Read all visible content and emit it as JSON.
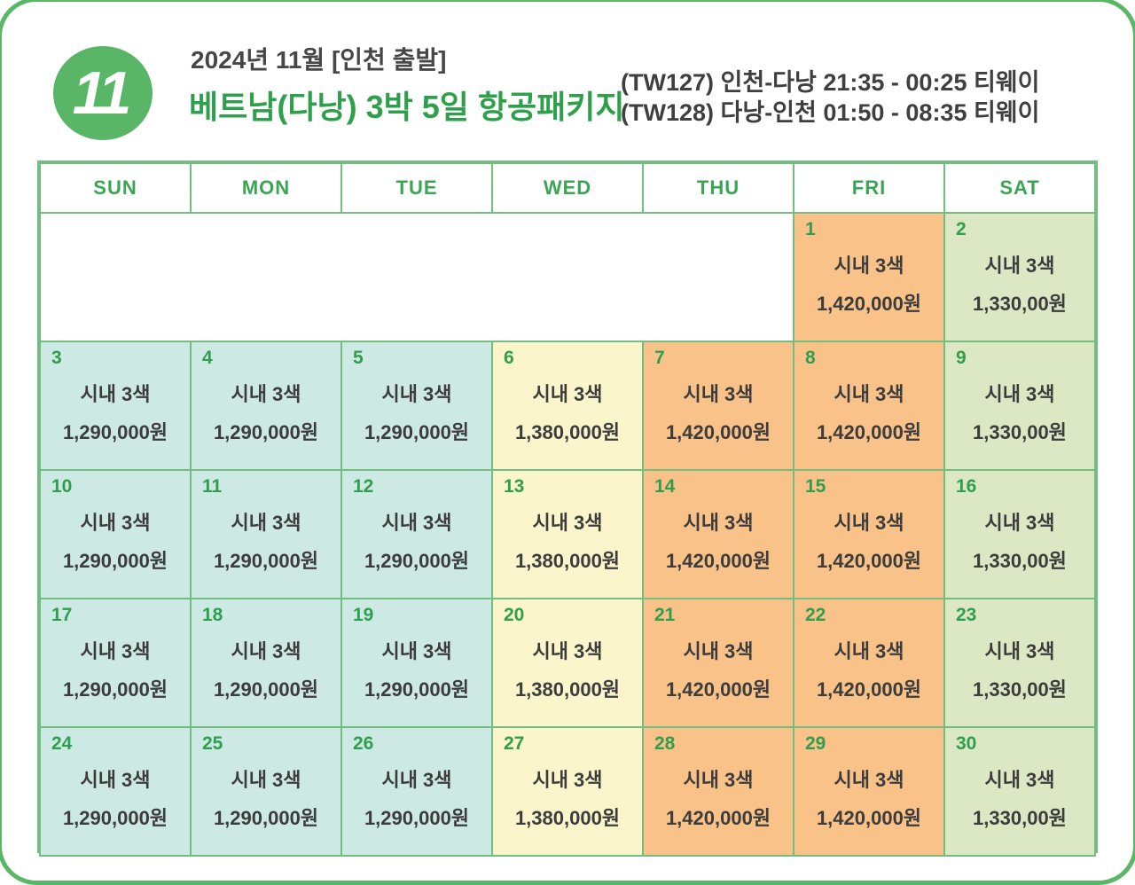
{
  "page": {
    "frame_color": "#5ab768",
    "accent_green": "#2ea04c",
    "border_green": "#74bd80"
  },
  "header": {
    "month_badge": "11",
    "date_line": "2024년 11월 [인천 출발]",
    "title": "베트남(다낭) 3박 5일 항공패키지",
    "flight_line1": "(TW127) 인천-다낭 21:35 - 00:25 티웨이",
    "flight_line2": "(TW128) 다낭-인천 01:50 - 08:35 티웨이"
  },
  "calendar": {
    "weekdays": [
      "SUN",
      "MON",
      "TUE",
      "WED",
      "THU",
      "FRI",
      "SAT"
    ],
    "product_label": "시내 3색",
    "column_variants": [
      "teal",
      "teal",
      "teal",
      "yellow",
      "orange",
      "orange",
      "green"
    ],
    "colors": {
      "teal": "#cde9e3",
      "yellow": "#fbf5cb",
      "orange": "#f8c289",
      "green": "#dce7c3",
      "white": "#ffffff"
    },
    "weeks": [
      [
        {
          "empty": true
        },
        {
          "empty": true
        },
        {
          "empty": true
        },
        {
          "empty": true
        },
        {
          "empty": true
        },
        {
          "day": "1",
          "price": "1,420,000원"
        },
        {
          "day": "2",
          "price": "1,330,00원"
        }
      ],
      [
        {
          "day": "3",
          "price": "1,290,000원"
        },
        {
          "day": "4",
          "price": "1,290,000원"
        },
        {
          "day": "5",
          "price": "1,290,000원"
        },
        {
          "day": "6",
          "price": "1,380,000원"
        },
        {
          "day": "7",
          "price": "1,420,000원"
        },
        {
          "day": "8",
          "price": "1,420,000원"
        },
        {
          "day": "9",
          "price": "1,330,00원"
        }
      ],
      [
        {
          "day": "10",
          "price": "1,290,000원"
        },
        {
          "day": "11",
          "price": "1,290,000원"
        },
        {
          "day": "12",
          "price": "1,290,000원"
        },
        {
          "day": "13",
          "price": "1,380,000원"
        },
        {
          "day": "14",
          "price": "1,420,000원"
        },
        {
          "day": "15",
          "price": "1,420,000원"
        },
        {
          "day": "16",
          "price": "1,330,00원"
        }
      ],
      [
        {
          "day": "17",
          "price": "1,290,000원"
        },
        {
          "day": "18",
          "price": "1,290,000원"
        },
        {
          "day": "19",
          "price": "1,290,000원"
        },
        {
          "day": "20",
          "price": "1,380,000원"
        },
        {
          "day": "21",
          "price": "1,420,000원"
        },
        {
          "day": "22",
          "price": "1,420,000원"
        },
        {
          "day": "23",
          "price": "1,330,00원"
        }
      ],
      [
        {
          "day": "24",
          "price": "1,290,000원"
        },
        {
          "day": "25",
          "price": "1,290,000원"
        },
        {
          "day": "26",
          "price": "1,290,000원"
        },
        {
          "day": "27",
          "price": "1,380,000원"
        },
        {
          "day": "28",
          "price": "1,420,000원"
        },
        {
          "day": "29",
          "price": "1,420,000원"
        },
        {
          "day": "30",
          "price": "1,330,00원"
        }
      ]
    ]
  }
}
